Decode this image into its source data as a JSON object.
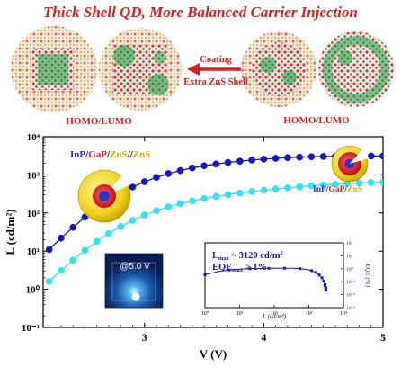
{
  "figure": {
    "title": "Thick Shell QD, More Balanced Carrier Injection",
    "top_panel": {
      "arrow_label_top": "Coating",
      "arrow_label_bottom": "Extra ZnS Shell",
      "left_caption": "HOMO/LUMO",
      "right_caption": "HOMO/LUMO"
    },
    "photo_label": "@5.0 V"
  },
  "colors": {
    "title": "#e01b1b",
    "series_thick": "#1414c8",
    "series_thin": "#2fe3f0",
    "inset_series": "#1414c8",
    "inp_text": "#1a2fd8",
    "gap_text": "#e01b1b",
    "zns_text": "#e8a800",
    "arrow": "#e01b1b"
  },
  "chart_data": [
    {
      "type": "line",
      "xlabel": "V (V)",
      "ylabel": "L (cd/m²)",
      "xlim": [
        2.15,
        5.0
      ],
      "ylim": [
        0.1,
        10000
      ],
      "yscale": "log",
      "xticks": [
        "3",
        "4",
        "5"
      ],
      "yticks": [
        "10⁻¹",
        "10⁰",
        "10¹",
        "10²",
        "10³",
        "10⁴"
      ],
      "series": [
        {
          "name": "InP/GaP/ZnS//ZnS",
          "name_parts": [
            "InP",
            "/",
            "GaP",
            "/",
            "ZnS",
            "//",
            "ZnS"
          ],
          "marker": "circle",
          "x": [
            2.2,
            2.3,
            2.4,
            2.5,
            2.6,
            2.7,
            2.8,
            2.9,
            3.0,
            3.1,
            3.2,
            3.3,
            3.4,
            3.5,
            3.6,
            3.7,
            3.8,
            3.9,
            4.0,
            4.1,
            4.2,
            4.3,
            4.4,
            4.5,
            4.6,
            4.7,
            4.8,
            4.9,
            5.0
          ],
          "y": [
            11,
            22,
            42,
            78,
            135,
            215,
            330,
            480,
            660,
            860,
            1080,
            1300,
            1520,
            1730,
            1930,
            2120,
            2290,
            2450,
            2590,
            2720,
            2830,
            2920,
            2990,
            3040,
            3080,
            3100,
            3115,
            3120,
            3120
          ]
        },
        {
          "name": "InP/GaP/ZnS",
          "name_parts": [
            "InP",
            "/",
            "GaP",
            "/",
            "ZnS"
          ],
          "marker": "circle",
          "x": [
            2.2,
            2.3,
            2.4,
            2.5,
            2.6,
            2.7,
            2.8,
            2.9,
            3.0,
            3.1,
            3.2,
            3.3,
            3.4,
            3.5,
            3.6,
            3.7,
            3.8,
            3.9,
            4.0,
            4.1,
            4.2,
            4.3,
            4.4,
            4.5,
            4.6,
            4.7,
            4.8,
            4.9,
            5.0
          ],
          "y": [
            1.6,
            3.1,
            5.8,
            10.5,
            18,
            29,
            44,
            64,
            88,
            115,
            145,
            175,
            208,
            240,
            272,
            303,
            335,
            365,
            395,
            425,
            455,
            485,
            515,
            540,
            565,
            590,
            610,
            628,
            640
          ]
        }
      ]
    },
    {
      "type": "line",
      "xlabel": "L (cd/m²)",
      "ylabel": "EQE (%)",
      "xscale": "log",
      "yscale": "log",
      "xlim": [
        1,
        10000
      ],
      "ylim": [
        0.001,
        100
      ],
      "xticks": [
        "10⁰",
        "10¹",
        "10²",
        "10³",
        "10⁴"
      ],
      "yticks": [
        "10⁻³",
        "10⁻²",
        "10⁻¹",
        "10⁰",
        "10¹",
        "10²"
      ],
      "annotations": [
        "L",
        "max",
        " ~ 3120 cd/m",
        "2",
        "EQE",
        "max",
        " > 1%"
      ],
      "series": [
        {
          "marker": "square",
          "x": [
            1.0,
            2.5,
            5,
            10,
            20,
            40,
            70,
            120,
            200,
            350,
            550,
            850,
            1200,
            1600,
            2000,
            2400,
            2700,
            2950,
            3100,
            3120,
            3050,
            2900
          ],
          "y": [
            0.35,
            0.62,
            0.8,
            0.92,
            1.0,
            1.05,
            1.08,
            1.1,
            1.1,
            1.08,
            1.02,
            0.9,
            0.72,
            0.52,
            0.33,
            0.2,
            0.11,
            0.06,
            0.035,
            0.022,
            0.03,
            0.05
          ]
        }
      ]
    }
  ]
}
